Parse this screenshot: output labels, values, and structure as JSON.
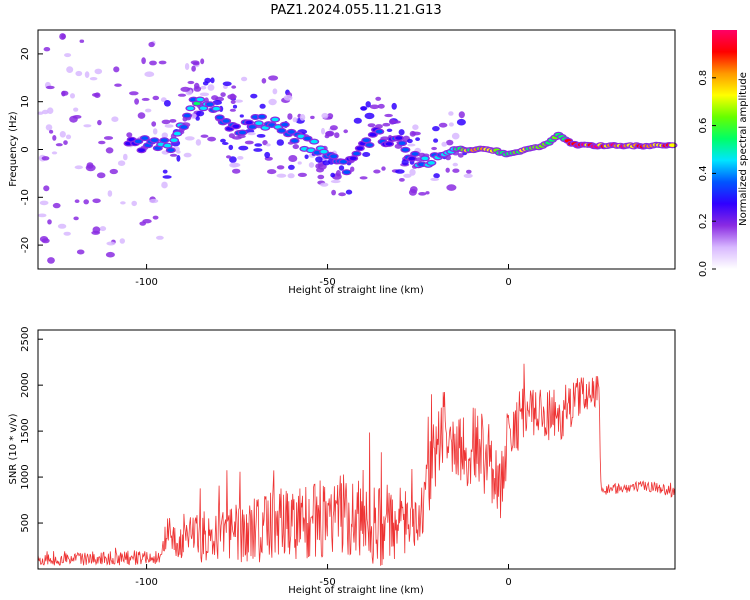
{
  "figure": {
    "title": "PAZ1.2024.055.11.21.G13"
  },
  "chart_data": [
    {
      "type": "heatmap",
      "name": "spectrogram",
      "xlabel": "Height of straight line (km)",
      "ylabel": "Frequency (Hz)",
      "xlim": [
        -130,
        46
      ],
      "ylim": [
        -25,
        25
      ],
      "x_ticks": [
        -100,
        -50,
        0
      ],
      "y_ticks": [
        -20,
        -10,
        0,
        10,
        20
      ],
      "colorbar": {
        "label": "Normalized spectral amplitude",
        "range": [
          0,
          1
        ],
        "ticks": [
          "0.0",
          "0.2",
          "0.4",
          "0.6",
          "0.8"
        ],
        "colormap": "gist_rainbow",
        "colors": [
          "#ffffff",
          "#d8b8ff",
          "#8a2be2",
          "#3000ff",
          "#0055ff",
          "#00e5ff",
          "#00ff66",
          "#66ff00",
          "#ffff00",
          "#ff9900",
          "#ff0000",
          "#ff0066"
        ]
      },
      "ridge": {
        "x": [
          -105,
          -100,
          -95,
          -92,
          -88,
          -84,
          -80,
          -75,
          -70,
          -65,
          -60,
          -55,
          -50,
          -45,
          -40,
          -35,
          -30,
          -25,
          -22,
          -18,
          -15,
          -10,
          -5,
          0,
          5,
          10,
          14,
          18,
          25,
          35,
          46
        ],
        "freq": [
          1,
          1,
          1,
          1,
          9,
          10,
          7,
          4,
          6,
          5,
          3,
          1,
          0,
          -4,
          2,
          3,
          1,
          -2,
          -3,
          -1,
          0,
          0,
          0,
          -1,
          0,
          1,
          3,
          1,
          0.8,
          0.8,
          0.8
        ],
        "amplitude": [
          0.3,
          0.4,
          0.5,
          0.45,
          0.45,
          0.5,
          0.4,
          0.35,
          0.4,
          0.45,
          0.4,
          0.45,
          0.4,
          0.35,
          0.3,
          0.35,
          0.3,
          0.45,
          0.45,
          0.5,
          0.6,
          0.75,
          0.8,
          0.55,
          0.7,
          0.6,
          0.6,
          0.95,
          0.9,
          0.9,
          0.88
        ]
      }
    },
    {
      "type": "line",
      "name": "snr",
      "xlabel": "Height of straight line (km)",
      "ylabel": "SNR (10 * v/v)",
      "xlim": [
        -130,
        46
      ],
      "ylim": [
        0,
        2600
      ],
      "x_ticks": [
        -100,
        -50,
        0
      ],
      "y_ticks": [
        500,
        1000,
        1500,
        2000,
        2500
      ],
      "color": "#ee3333",
      "envelope": {
        "x": [
          -130,
          -110,
          -96,
          -94,
          -92,
          -85,
          -75,
          -65,
          -55,
          -45,
          -35,
          -28,
          -24,
          -22,
          -20,
          -18,
          -15,
          -10,
          -5,
          -2,
          0,
          5,
          10,
          15,
          20,
          25,
          25.5,
          30,
          40,
          46
        ],
        "mean": [
          100,
          120,
          130,
          450,
          280,
          350,
          400,
          500,
          520,
          560,
          480,
          520,
          620,
          900,
          1350,
          1550,
          1300,
          1350,
          1200,
          900,
          1500,
          1700,
          1650,
          1700,
          1900,
          1950,
          850,
          880,
          900,
          830
        ],
        "spread": [
          60,
          80,
          80,
          150,
          150,
          280,
          350,
          420,
          420,
          480,
          450,
          350,
          350,
          400,
          450,
          500,
          400,
          450,
          450,
          400,
          350,
          300,
          300,
          300,
          200,
          180,
          60,
          60,
          60,
          60
        ]
      }
    }
  ]
}
